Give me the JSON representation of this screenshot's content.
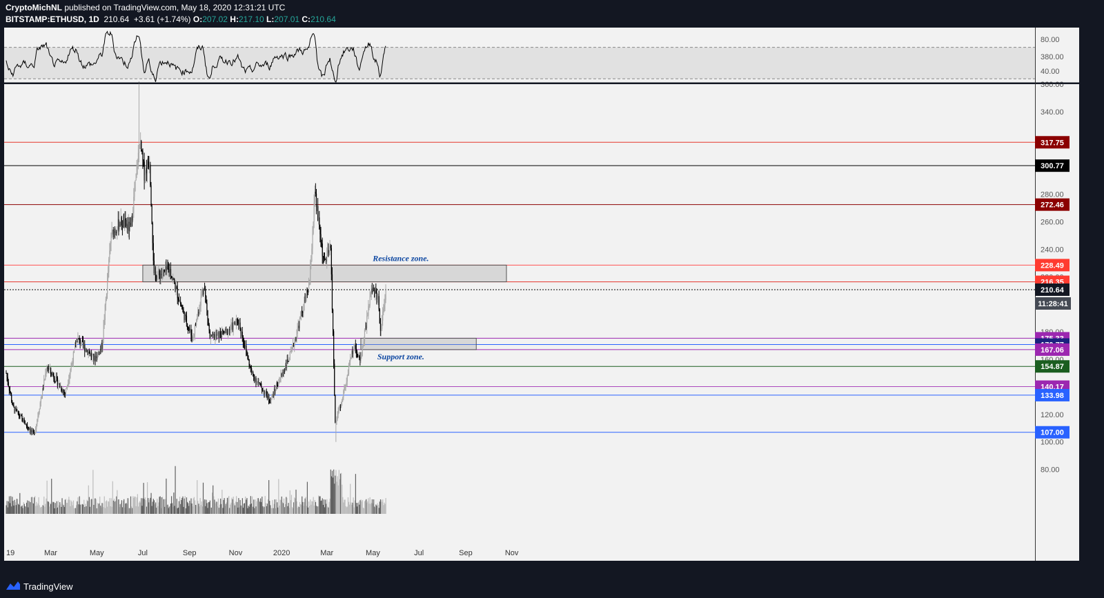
{
  "header": {
    "author": "CryptoMichNL",
    "published": " published on TradingView.com, May 18, 2020 12:31:21 UTC",
    "symbol": "BITSTAMP:ETHUSD, 1D",
    "last": "210.64",
    "change": "+3.61 (+1.74%)",
    "o_label": "O:",
    "o": "207.02",
    "h_label": "H:",
    "h": "217.10",
    "l_label": "L:",
    "l": "207.01",
    "c_label": "C:",
    "c": "210.64"
  },
  "footer": {
    "brand": "TradingView"
  },
  "colors": {
    "background": "#131722",
    "pane": "#f2f2f2",
    "red_level": "#e5342b",
    "purple_level": "#9c27b0",
    "blue_level": "#2962ff",
    "green_level": "#4caf50"
  },
  "chart_data": {
    "type": "candlestick",
    "symbol": "BITSTAMP:ETHUSD",
    "interval": "1D",
    "x_ticks": [
      "19",
      "Mar",
      "May",
      "Jul",
      "Sep",
      "Nov",
      "2020",
      "Mar",
      "May",
      "Jul",
      "Sep",
      "Nov"
    ],
    "y_ticks": [
      "380.00",
      "360.00",
      "340.00",
      "320.00",
      "300.00",
      "280.00",
      "260.00",
      "240.00",
      "220.00",
      "200.00",
      "180.00",
      "160.00",
      "140.00",
      "120.00",
      "100.00",
      "80.00"
    ],
    "ylim": [
      55,
      400
    ],
    "price_path": [
      [
        "2019-01-01",
        150
      ],
      [
        "2019-01-10",
        125
      ],
      [
        "2019-02-07",
        105
      ],
      [
        "2019-02-24",
        155
      ],
      [
        "2019-03-20",
        135
      ],
      [
        "2019-04-05",
        175
      ],
      [
        "2019-04-28",
        160
      ],
      [
        "2019-05-08",
        170
      ],
      [
        "2019-05-20",
        250
      ],
      [
        "2019-06-01",
        260
      ],
      [
        "2019-06-15",
        255
      ],
      [
        "2019-06-27",
        318
      ],
      [
        "2019-07-03",
        295
      ],
      [
        "2019-07-10",
        305
      ],
      [
        "2019-07-16",
        220
      ],
      [
        "2019-08-06",
        225
      ],
      [
        "2019-08-23",
        195
      ],
      [
        "2019-09-05",
        175
      ],
      [
        "2019-09-20",
        215
      ],
      [
        "2019-09-28",
        175
      ],
      [
        "2019-10-20",
        180
      ],
      [
        "2019-11-05",
        188
      ],
      [
        "2019-11-22",
        150
      ],
      [
        "2019-12-17",
        130
      ],
      [
        "2020-01-14",
        165
      ],
      [
        "2020-02-07",
        215
      ],
      [
        "2020-02-14",
        280
      ],
      [
        "2020-02-26",
        230
      ],
      [
        "2020-03-06",
        240
      ],
      [
        "2020-03-12",
        115
      ],
      [
        "2020-03-21",
        130
      ],
      [
        "2020-04-06",
        172
      ],
      [
        "2020-04-14",
        158
      ],
      [
        "2020-04-29",
        210
      ],
      [
        "2020-05-08",
        205
      ],
      [
        "2020-05-11",
        180
      ],
      [
        "2020-05-18",
        210.64
      ]
    ],
    "wick_extremes": {
      "high_2019": 362,
      "high_2020": 288,
      "low_2020": 100
    },
    "horizontal_levels": [
      {
        "label": "317.75",
        "color": "#e5342b",
        "text_color": "#ffffff",
        "badge": "#8b0000"
      },
      {
        "label": "300.77",
        "color": "#000000",
        "text_color": "#ffffff",
        "badge": "#000000"
      },
      {
        "label": "272.46",
        "color": "#8b0000",
        "text_color": "#ffffff",
        "badge": "#8b0000"
      },
      {
        "label": "228.49",
        "color": "#ff5252",
        "text_color": "#ffffff",
        "badge": "#ff3b30"
      },
      {
        "label": "216.35",
        "color": "#e5342b",
        "text_color": "#ffffff",
        "badge": "#ff3b30"
      },
      {
        "label": "210.64",
        "color": "#000000",
        "text_color": "#ffffff",
        "badge": "#131722",
        "dotted": true
      },
      {
        "label": "175.33",
        "color": "#9c27b0",
        "text_color": "#ffffff",
        "badge": "#9c27b0"
      },
      {
        "label": "170.77",
        "color": "#2962ff",
        "text_color": "#ffffff",
        "badge": "#1a237e"
      },
      {
        "label": "167.06",
        "color": "#9c27b0",
        "text_color": "#ffffff",
        "badge": "#9c27b0"
      },
      {
        "label": "154.87",
        "color": "#1b5e20",
        "text_color": "#ffffff",
        "badge": "#1b5e20"
      },
      {
        "label": "140.17",
        "color": "#ab47bc",
        "text_color": "#ffffff",
        "badge": "#9c27b0"
      },
      {
        "label": "133.98",
        "color": "#2962ff",
        "text_color": "#ffffff",
        "badge": "#2962ff"
      },
      {
        "label": "107.00",
        "color": "#2962ff",
        "text_color": "#ffffff",
        "badge": "#2962ff"
      }
    ],
    "countdown": "11:28:41",
    "annotations": [
      "Resistance zone.",
      "Support zone."
    ],
    "zones": [
      {
        "name": "Resistance zone.",
        "from": 216.35,
        "to": 228.49,
        "start": "2019-07-01",
        "end": "2020-10-25"
      },
      {
        "name": "Support zone.",
        "from": 167.06,
        "to": 175.33,
        "start": "2020-04-15",
        "end": "2020-09-15"
      }
    ],
    "rsi": {
      "ticks": [
        "80.00",
        "40.00"
      ],
      "ylim": [
        25,
        95
      ],
      "upper": 70,
      "lower": 30
    }
  }
}
